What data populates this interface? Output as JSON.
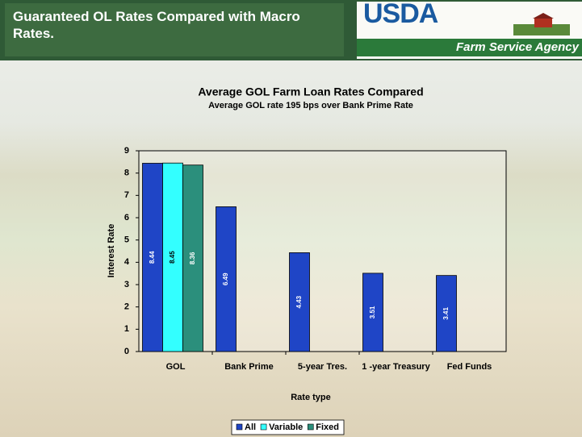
{
  "header": {
    "title": "Guaranteed OL Rates Compared with Macro Rates.",
    "logo": "USDA",
    "agency": "Farm Service Agency"
  },
  "chart_data": {
    "type": "bar",
    "title": "Average GOL Farm Loan Rates Compared",
    "subtitle": "Average GOL rate 195 bps over Bank Prime Rate",
    "xlabel": "Rate type",
    "ylabel": "Interest Rate",
    "categories": [
      "GOL",
      "Bank Prime",
      "5-year Tres.",
      "1 -year Treasury",
      "Fed Funds"
    ],
    "series": [
      {
        "name": "All",
        "color": "#1f45c6",
        "values": [
          8.44,
          6.49,
          4.43,
          3.51,
          3.41
        ]
      },
      {
        "name": "Variable",
        "color": "#33ffff",
        "values": [
          8.45,
          null,
          null,
          null,
          null
        ]
      },
      {
        "name": "Fixed",
        "color": "#2b8f7c",
        "values": [
          8.36,
          null,
          null,
          null,
          null
        ]
      }
    ],
    "ylim": [
      0,
      9
    ],
    "yticks": [
      0,
      1,
      2,
      3,
      4,
      5,
      6,
      7,
      8,
      9
    ],
    "legend": "bottom"
  }
}
